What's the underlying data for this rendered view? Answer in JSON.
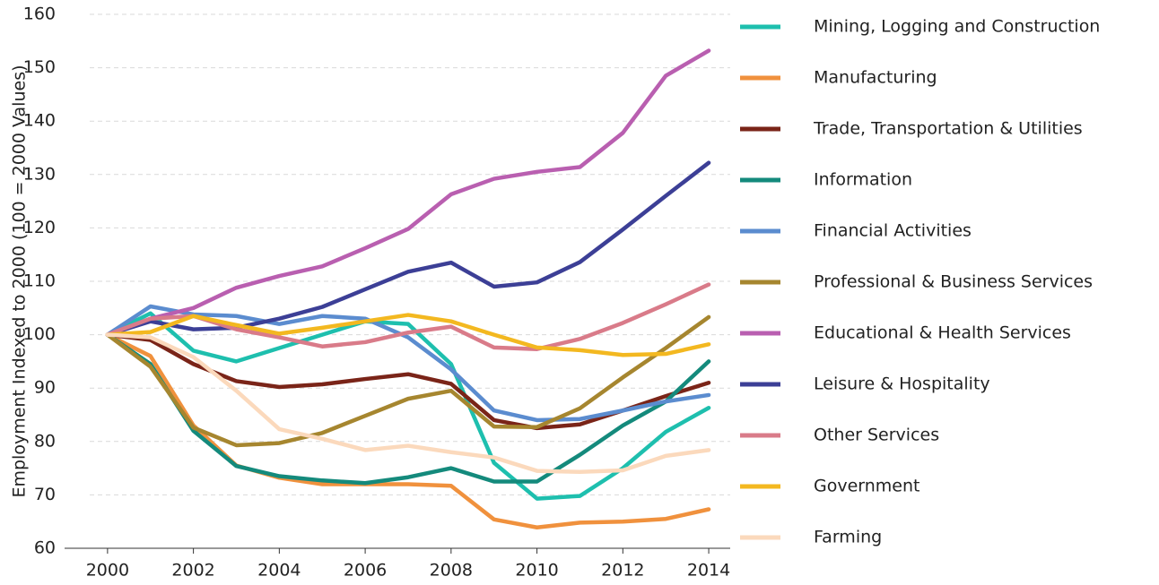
{
  "chart_data": {
    "type": "line",
    "y_label": "Employment Indexed to 2000 (100 = 2000 Values)",
    "x": [
      2000,
      2001,
      2002,
      2003,
      2004,
      2005,
      2006,
      2007,
      2008,
      2009,
      2010,
      2011,
      2012,
      2013,
      2014
    ],
    "xlim": [
      1999,
      2014.5
    ],
    "xticks": [
      2000,
      2002,
      2004,
      2006,
      2008,
      2010,
      2012,
      2014
    ],
    "ylim": [
      60,
      160
    ],
    "yticks": [
      60,
      70,
      80,
      90,
      100,
      110,
      120,
      130,
      140,
      150,
      160
    ],
    "grid": true,
    "legend": "right",
    "series": [
      {
        "name": "Mining, Logging  and  Construction",
        "color": "#1ebfae",
        "values": [
          100,
          104,
          97,
          95,
          97.5,
          100,
          102.5,
          102,
          94.5,
          76,
          69.3,
          69.8,
          75,
          81.8,
          86.3
        ]
      },
      {
        "name": "Manufacturing",
        "color": "#f0913d",
        "values": [
          100,
          96,
          83,
          75.5,
          73.2,
          72,
          72,
          72,
          71.7,
          65.4,
          63.9,
          64.8,
          65,
          65.5,
          67.3
        ]
      },
      {
        "name": "Trade, Transportation & Utilities",
        "color": "#7a2418",
        "values": [
          100,
          99,
          94.5,
          91.3,
          90.2,
          90.7,
          91.7,
          92.6,
          90.8,
          84,
          82.5,
          83.2,
          85.8,
          88.5,
          91
        ]
      },
      {
        "name": "Information",
        "color": "#148a7c",
        "values": [
          100,
          94.5,
          82,
          75.4,
          73.5,
          72.7,
          72.2,
          73.3,
          75,
          72.5,
          72.5,
          77.5,
          83,
          87.5,
          95
        ]
      },
      {
        "name": "Financial Activities",
        "color": "#5b8ccf",
        "values": [
          100,
          105.3,
          103.8,
          103.5,
          102,
          103.5,
          103,
          99.5,
          93.5,
          85.8,
          84,
          84.2,
          85.8,
          87.5,
          88.7
        ]
      },
      {
        "name": "Professional & Business Services",
        "color": "#a6862f",
        "values": [
          100,
          94,
          82.6,
          79.3,
          79.7,
          81.6,
          84.8,
          88,
          89.5,
          82.8,
          82.7,
          86.2,
          92,
          97.5,
          103.3
        ]
      },
      {
        "name": "Educational & Health Services",
        "color": "#b95fb0",
        "values": [
          100,
          103,
          105,
          108.8,
          111,
          112.8,
          116.2,
          119.8,
          126.3,
          129.2,
          130.5,
          131.4,
          137.8,
          148.5,
          153.2
        ]
      },
      {
        "name": "Leisure & Hospitality",
        "color": "#3c3f96",
        "values": [
          100,
          102.5,
          101,
          101.3,
          103,
          105.2,
          108.5,
          111.8,
          113.5,
          109,
          109.8,
          113.6,
          119.7,
          126,
          132.2
        ]
      },
      {
        "name": "Other Services",
        "color": "#d97b89",
        "values": [
          100,
          103,
          103.5,
          101,
          99.5,
          97.8,
          98.6,
          100.4,
          101.5,
          97.6,
          97.3,
          99.2,
          102.2,
          105.7,
          109.4
        ]
      },
      {
        "name": "Government",
        "color": "#f3b820",
        "values": [
          100,
          100.5,
          103.5,
          101.8,
          100.2,
          101.3,
          102.5,
          103.7,
          102.5,
          100,
          97.6,
          97.1,
          96.2,
          96.4,
          98.2
        ]
      },
      {
        "name": "Farming",
        "color": "#fbd9bc",
        "values": [
          100,
          99.5,
          95.8,
          89.5,
          82.3,
          80.5,
          78.4,
          79.2,
          78,
          77,
          74.5,
          74.3,
          74.6,
          77.3,
          78.4
        ]
      }
    ]
  }
}
